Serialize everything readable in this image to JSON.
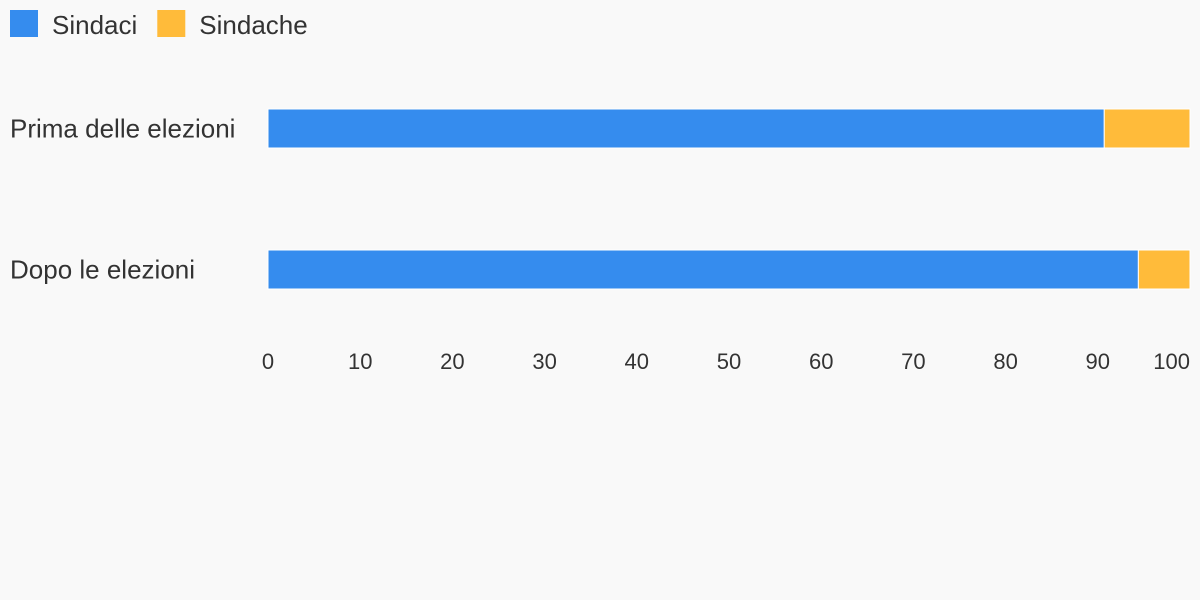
{
  "chart_data": {
    "type": "bar",
    "orientation": "horizontal",
    "stacked": true,
    "categories": [
      "Prima delle elezioni",
      "Dopo le elezioni"
    ],
    "series": [
      {
        "name": "Sindaci",
        "color": "#358cee",
        "values": [
          90.7,
          94.4
        ]
      },
      {
        "name": "Sindache",
        "color": "#ffbb3a",
        "values": [
          9.3,
          5.6
        ]
      }
    ],
    "xlim": [
      0,
      100
    ],
    "xticks": [
      0,
      10,
      20,
      30,
      40,
      50,
      60,
      70,
      80,
      90,
      100
    ],
    "legend": "top-left",
    "grid": false
  }
}
